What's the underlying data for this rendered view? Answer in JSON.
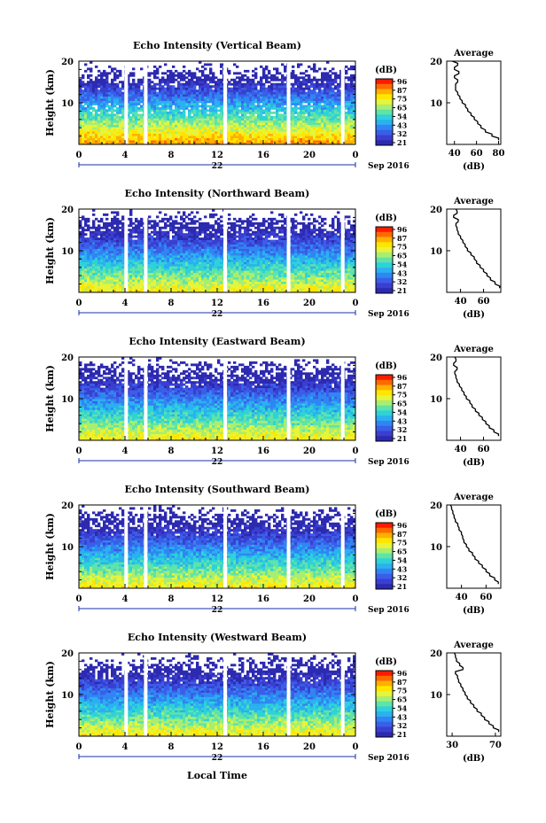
{
  "figure": {
    "x_axis_title": "Local Time",
    "date_label": "Sep 2016",
    "colorbar_unit": "(dB)",
    "average_title": "Average",
    "average_xlabel": "(dB)",
    "y_axis_title": "Height (km)"
  },
  "colorbar": {
    "ticks": [
      "96",
      "87",
      "75",
      "65",
      "54",
      "43",
      "32",
      "21"
    ],
    "colors": [
      "#ff1a00",
      "#ff6a00",
      "#ffb000",
      "#ffe600",
      "#e6f53a",
      "#a8ee72",
      "#5fe3a8",
      "#2ed2d8",
      "#2bb0f0",
      "#2f86f2",
      "#3a5ee8",
      "#3a3fd0",
      "#2c2ab0"
    ]
  },
  "chart_data": [
    {
      "type": "heatmap",
      "title": "Echo Intensity (Vertical Beam)",
      "day_label": "22",
      "x_ticks": [
        "0",
        "4",
        "8",
        "12",
        "16",
        "20",
        "0"
      ],
      "y_ticks": [
        "20",
        "10"
      ],
      "ylim": [
        0,
        20
      ],
      "xlim": [
        0,
        24
      ],
      "data_gaps_hours": [
        4.1,
        5.8,
        12.7,
        18.2,
        22.9
      ],
      "profile": {
        "x_ticks": [
          "40",
          "60",
          "80"
        ],
        "xlim": [
          33,
          82
        ],
        "heights": [
          1,
          2,
          3,
          4,
          5,
          6,
          7,
          8,
          9,
          10,
          11,
          12,
          13,
          14,
          15,
          16,
          17,
          18,
          19,
          20
        ],
        "values": [
          80,
          74,
          68,
          64,
          61,
          58,
          55,
          52,
          50,
          47,
          45,
          43,
          41,
          41,
          43,
          40,
          44,
          40,
          43,
          38
        ]
      }
    },
    {
      "type": "heatmap",
      "title": "Echo Intensity (Northward Beam)",
      "day_label": "22",
      "x_ticks": [
        "0",
        "4",
        "8",
        "12",
        "16",
        "20",
        "0"
      ],
      "y_ticks": [
        "20",
        "10"
      ],
      "ylim": [
        0,
        20
      ],
      "xlim": [
        0,
        24
      ],
      "data_gaps_hours": [
        4.1,
        5.8,
        12.7,
        18.2,
        22.9
      ],
      "profile": {
        "x_ticks": [
          "40",
          "60"
        ],
        "xlim": [
          28,
          75
        ],
        "heights": [
          1,
          2,
          3,
          4,
          5,
          6,
          7,
          8,
          9,
          10,
          11,
          12,
          13,
          14,
          15,
          16,
          17,
          18,
          19,
          20
        ],
        "values": [
          74,
          70,
          66,
          63,
          60,
          57,
          54,
          52,
          49,
          46,
          44,
          42,
          40,
          38,
          37,
          36,
          38,
          34,
          37,
          36
        ]
      }
    },
    {
      "type": "heatmap",
      "title": "Echo Intensity (Eastward Beam)",
      "day_label": "22",
      "x_ticks": [
        "0",
        "4",
        "8",
        "12",
        "16",
        "20",
        "0"
      ],
      "y_ticks": [
        "20",
        "10"
      ],
      "ylim": [
        0,
        20
      ],
      "xlim": [
        0,
        24
      ],
      "data_gaps_hours": [
        4.1,
        5.8,
        12.7,
        18.2,
        22.9
      ],
      "profile": {
        "x_ticks": [
          "40",
          "60"
        ],
        "xlim": [
          28,
          75
        ],
        "heights": [
          1,
          2,
          3,
          4,
          5,
          6,
          7,
          8,
          9,
          10,
          11,
          12,
          13,
          14,
          15,
          16,
          17,
          18,
          19,
          20
        ],
        "values": [
          73,
          69,
          65,
          62,
          59,
          56,
          53,
          50,
          48,
          45,
          43,
          41,
          39,
          37,
          36,
          35,
          37,
          34,
          36,
          35
        ]
      }
    },
    {
      "type": "heatmap",
      "title": "Echo Intensity (Southward Beam)",
      "day_label": "22",
      "x_ticks": [
        "0",
        "4",
        "8",
        "12",
        "16",
        "20",
        "0"
      ],
      "y_ticks": [
        "20",
        "10"
      ],
      "ylim": [
        0,
        20
      ],
      "xlim": [
        0,
        24
      ],
      "data_gaps_hours": [
        4.1,
        5.8,
        12.7,
        18.2,
        22.9
      ],
      "profile": {
        "x_ticks": [
          "40",
          "60"
        ],
        "xlim": [
          28,
          72
        ],
        "heights": [
          1,
          2,
          3,
          4,
          5,
          6,
          7,
          8,
          9,
          10,
          11,
          12,
          13,
          14,
          15,
          16,
          17,
          18,
          19,
          20
        ],
        "values": [
          70,
          67,
          63,
          60,
          57,
          54,
          51,
          49,
          46,
          44,
          42,
          41,
          40,
          38,
          37,
          35,
          34,
          33,
          32,
          31
        ]
      }
    },
    {
      "type": "heatmap",
      "title": "Echo Intensity (Westward Beam)",
      "day_label": "22",
      "x_ticks": [
        "0",
        "4",
        "8",
        "12",
        "16",
        "20",
        "0"
      ],
      "y_ticks": [
        "20",
        "10"
      ],
      "ylim": [
        0,
        20
      ],
      "xlim": [
        0,
        24
      ],
      "data_gaps_hours": [
        4.1,
        5.8,
        12.7,
        18.2,
        22.9
      ],
      "profile": {
        "x_ticks": [
          "30",
          "70"
        ],
        "xlim": [
          25,
          75
        ],
        "heights": [
          1,
          2,
          3,
          4,
          5,
          6,
          7,
          8,
          9,
          10,
          11,
          12,
          13,
          14,
          15,
          16,
          17,
          18,
          19,
          20
        ],
        "values": [
          73,
          68,
          64,
          60,
          57,
          53,
          50,
          47,
          44,
          42,
          40,
          38,
          36,
          35,
          33,
          40,
          37,
          34,
          33,
          32
        ]
      }
    }
  ]
}
